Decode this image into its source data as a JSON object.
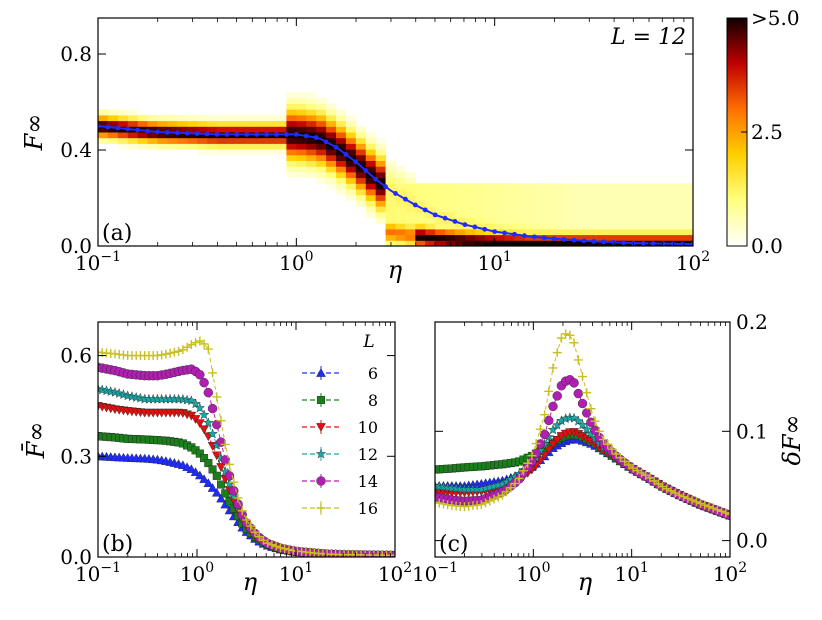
{
  "colors": {
    "blue": "#1f2bff",
    "green": "#1a7f1a",
    "red": "#e01010",
    "cyan": "#1aa8a8",
    "magenta": "#b020b0",
    "yellow": "#c8c020"
  },
  "chart_data": [
    {
      "type": "heatmap",
      "panel_label": "(a)",
      "annotation": "L = 12",
      "xlabel": "η",
      "ylabel": "F∞",
      "xscale": "log",
      "xlim": [
        0.1,
        100
      ],
      "ylim": [
        0.0,
        0.95
      ],
      "xticks": [
        {
          "value": 0.1,
          "base": "10",
          "exp": "−1"
        },
        {
          "value": 1,
          "base": "10",
          "exp": "0"
        },
        {
          "value": 10,
          "base": "10",
          "exp": "1"
        },
        {
          "value": 100,
          "base": "10",
          "exp": "2"
        }
      ],
      "yticks": [
        {
          "value": 0.0,
          "label": "0.0"
        },
        {
          "value": 0.4,
          "label": "0.4"
        },
        {
          "value": 0.8,
          "label": "0.8"
        }
      ],
      "colorbar": {
        "range": [
          0,
          5.0
        ],
        "ticks": [
          {
            "value": 0,
            "label": "0.0"
          },
          {
            "value": 2.5,
            "label": "2.5"
          },
          {
            "value": 5.0,
            "label": ">5.0"
          }
        ],
        "colormap": "hot_r"
      },
      "mean_curve": {
        "color": "#1f2bff",
        "points": [
          [
            0.1,
            0.5
          ],
          [
            0.2,
            0.475
          ],
          [
            0.4,
            0.465
          ],
          [
            0.7,
            0.465
          ],
          [
            1.0,
            0.465
          ],
          [
            1.3,
            0.45
          ],
          [
            1.6,
            0.41
          ],
          [
            2.0,
            0.35
          ],
          [
            2.5,
            0.28
          ],
          [
            3.0,
            0.23
          ],
          [
            4.0,
            0.17
          ],
          [
            5.0,
            0.13
          ],
          [
            7.0,
            0.09
          ],
          [
            10.0,
            0.06
          ],
          [
            15.0,
            0.04
          ],
          [
            20.0,
            0.03
          ],
          [
            30.0,
            0.02
          ],
          [
            50.0,
            0.012
          ],
          [
            100.0,
            0.008
          ]
        ]
      }
    },
    {
      "type": "line",
      "panel_label": "(b)",
      "xlabel": "η",
      "ylabel": "F̄∞",
      "xscale": "log",
      "xlim": [
        0.1,
        100
      ],
      "ylim": [
        0.0,
        0.7
      ],
      "xticks": [
        {
          "value": 0.1,
          "base": "10",
          "exp": "−1"
        },
        {
          "value": 1,
          "base": "10",
          "exp": "0"
        },
        {
          "value": 10,
          "base": "10",
          "exp": "1"
        },
        {
          "value": 100,
          "base": "10",
          "exp": "2"
        }
      ],
      "yticks": [
        {
          "value": 0.0,
          "label": "0.0"
        },
        {
          "value": 0.3,
          "label": "0.3"
        },
        {
          "value": 0.6,
          "label": "0.6"
        }
      ],
      "x": [
        0.1,
        0.15,
        0.2,
        0.3,
        0.4,
        0.5,
        0.7,
        0.9,
        1.1,
        1.3,
        1.6,
        2.0,
        2.5,
        3.0,
        4.0,
        5.0,
        7.0,
        10.0,
        15.0,
        20.0,
        30.0,
        50.0,
        100.0
      ],
      "legend": {
        "title": "L",
        "position": "upper-right"
      },
      "series": [
        {
          "name": "6",
          "marker": "triangle-up",
          "color": "#1f2bff",
          "values": [
            0.3,
            0.297,
            0.295,
            0.293,
            0.29,
            0.285,
            0.275,
            0.26,
            0.24,
            0.22,
            0.19,
            0.15,
            0.11,
            0.08,
            0.05,
            0.035,
            0.022,
            0.015,
            0.011,
            0.009,
            0.007,
            0.006,
            0.005
          ]
        },
        {
          "name": "8",
          "marker": "square",
          "color": "#1a7f1a",
          "values": [
            0.36,
            0.356,
            0.352,
            0.35,
            0.348,
            0.346,
            0.34,
            0.325,
            0.305,
            0.28,
            0.24,
            0.18,
            0.13,
            0.09,
            0.055,
            0.038,
            0.024,
            0.016,
            0.012,
            0.009,
            0.007,
            0.006,
            0.005
          ]
        },
        {
          "name": "10",
          "marker": "triangle-down",
          "color": "#e01010",
          "values": [
            0.45,
            0.44,
            0.435,
            0.43,
            0.43,
            0.43,
            0.43,
            0.42,
            0.395,
            0.36,
            0.3,
            0.22,
            0.15,
            0.1,
            0.06,
            0.04,
            0.025,
            0.017,
            0.012,
            0.009,
            0.007,
            0.006,
            0.005
          ]
        },
        {
          "name": "12",
          "marker": "star",
          "color": "#1aa8a8",
          "values": [
            0.5,
            0.49,
            0.48,
            0.47,
            0.47,
            0.47,
            0.47,
            0.465,
            0.44,
            0.4,
            0.33,
            0.24,
            0.16,
            0.105,
            0.062,
            0.041,
            0.026,
            0.017,
            0.012,
            0.009,
            0.007,
            0.006,
            0.005
          ]
        },
        {
          "name": "14",
          "marker": "hexagon",
          "color": "#b020b0",
          "values": [
            0.565,
            0.555,
            0.545,
            0.54,
            0.54,
            0.545,
            0.555,
            0.56,
            0.54,
            0.49,
            0.39,
            0.27,
            0.17,
            0.11,
            0.064,
            0.042,
            0.026,
            0.017,
            0.012,
            0.009,
            0.007,
            0.006,
            0.005
          ]
        },
        {
          "name": "16",
          "marker": "plus",
          "color": "#c8c020",
          "values": [
            0.61,
            0.605,
            0.6,
            0.6,
            0.6,
            0.605,
            0.615,
            0.635,
            0.645,
            0.62,
            0.47,
            0.31,
            0.19,
            0.12,
            0.067,
            0.043,
            0.027,
            0.018,
            0.012,
            0.009,
            0.007,
            0.006,
            0.005
          ]
        }
      ]
    },
    {
      "type": "line",
      "panel_label": "(c)",
      "xlabel": "η",
      "ylabel": "δF∞",
      "ylabel_side": "right",
      "xscale": "log",
      "xlim": [
        0.1,
        100
      ],
      "ylim": [
        -0.015,
        0.2
      ],
      "xticks": [
        {
          "value": 0.1,
          "base": "10",
          "exp": "−1"
        },
        {
          "value": 1,
          "base": "10",
          "exp": "0"
        },
        {
          "value": 10,
          "base": "10",
          "exp": "1"
        },
        {
          "value": 100,
          "base": "10",
          "exp": "2"
        }
      ],
      "yticks": [
        {
          "value": 0.0,
          "label": "0.0"
        },
        {
          "value": 0.1,
          "label": "0.1"
        },
        {
          "value": 0.2,
          "label": "0.2"
        }
      ],
      "x": [
        0.1,
        0.15,
        0.2,
        0.3,
        0.5,
        0.7,
        1.0,
        1.3,
        1.6,
        2.0,
        2.5,
        3.0,
        4.0,
        5.0,
        7.0,
        10.0,
        15.0,
        20.0,
        30.0,
        50.0,
        100.0
      ],
      "series": [
        {
          "name": "6",
          "marker": "triangle-up",
          "color": "#1f2bff",
          "values": [
            0.05,
            0.05,
            0.05,
            0.052,
            0.055,
            0.06,
            0.068,
            0.077,
            0.085,
            0.09,
            0.093,
            0.092,
            0.088,
            0.083,
            0.075,
            0.066,
            0.057,
            0.05,
            0.042,
            0.033,
            0.023
          ]
        },
        {
          "name": "8",
          "marker": "square",
          "color": "#1a7f1a",
          "values": [
            0.065,
            0.066,
            0.067,
            0.068,
            0.07,
            0.072,
            0.078,
            0.084,
            0.09,
            0.095,
            0.097,
            0.096,
            0.09,
            0.084,
            0.075,
            0.066,
            0.057,
            0.05,
            0.042,
            0.033,
            0.023
          ]
        },
        {
          "name": "10",
          "marker": "triangle-down",
          "color": "#e01010",
          "values": [
            0.045,
            0.044,
            0.044,
            0.045,
            0.049,
            0.055,
            0.066,
            0.078,
            0.089,
            0.097,
            0.1,
            0.097,
            0.09,
            0.083,
            0.075,
            0.066,
            0.057,
            0.05,
            0.042,
            0.033,
            0.023
          ]
        },
        {
          "name": "12",
          "marker": "star",
          "color": "#1aa8a8",
          "values": [
            0.05,
            0.048,
            0.047,
            0.047,
            0.052,
            0.06,
            0.073,
            0.088,
            0.102,
            0.111,
            0.113,
            0.108,
            0.096,
            0.086,
            0.076,
            0.066,
            0.057,
            0.05,
            0.042,
            0.033,
            0.023
          ]
        },
        {
          "name": "14",
          "marker": "hexagon",
          "color": "#b020b0",
          "values": [
            0.04,
            0.037,
            0.036,
            0.037,
            0.045,
            0.055,
            0.074,
            0.097,
            0.124,
            0.145,
            0.148,
            0.13,
            0.105,
            0.09,
            0.077,
            0.066,
            0.057,
            0.05,
            0.042,
            0.033,
            0.023
          ]
        },
        {
          "name": "16",
          "marker": "plus",
          "color": "#c8c020",
          "values": [
            0.035,
            0.032,
            0.031,
            0.033,
            0.042,
            0.055,
            0.08,
            0.115,
            0.16,
            0.19,
            0.187,
            0.158,
            0.115,
            0.094,
            0.079,
            0.067,
            0.058,
            0.05,
            0.042,
            0.034,
            0.024
          ]
        }
      ]
    }
  ]
}
